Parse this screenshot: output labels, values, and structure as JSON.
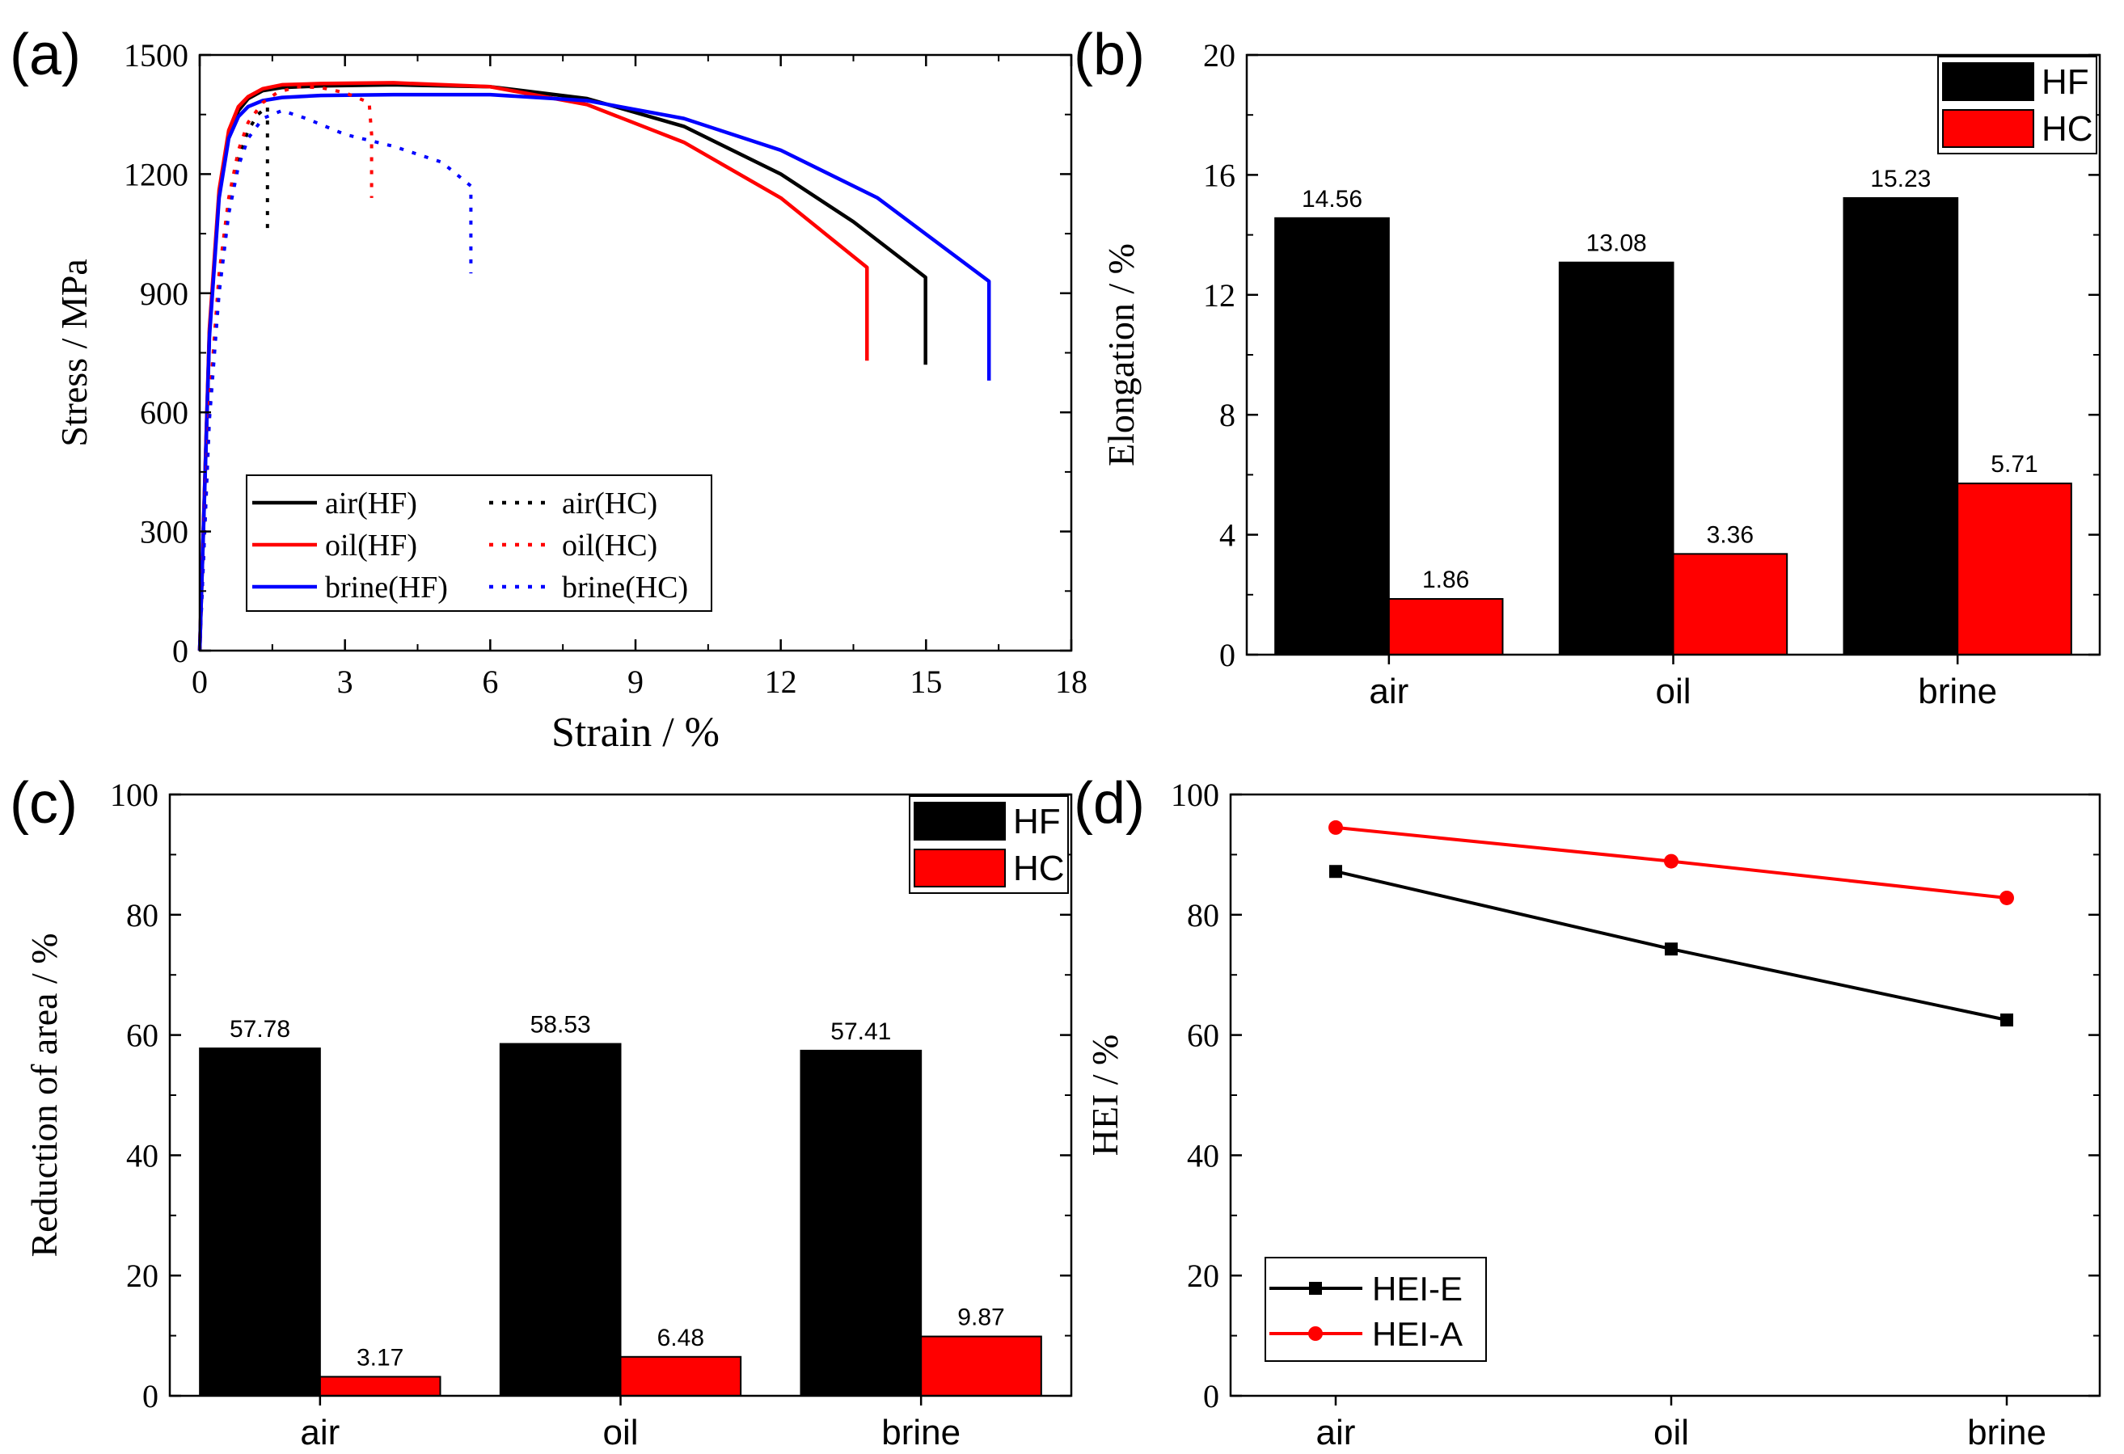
{
  "panels": {
    "a": {
      "label": "(a)"
    },
    "b": {
      "label": "(b)"
    },
    "c": {
      "label": "(c)"
    },
    "d": {
      "label": "(d)"
    }
  },
  "chart_data": [
    {
      "id": "a",
      "type": "line",
      "xlabel": "Strain / %",
      "ylabel": "Stress / MPa",
      "xlim": [
        0,
        18
      ],
      "ylim": [
        0,
        1500
      ],
      "xticks": [
        0,
        3,
        6,
        9,
        12,
        15,
        18
      ],
      "yticks": [
        0,
        300,
        600,
        900,
        1200,
        1500
      ],
      "legend_position": "lower-left",
      "series": [
        {
          "name": "air(HF)",
          "color": "#000000",
          "dashed": false,
          "x": [
            0,
            0.2,
            0.4,
            0.6,
            0.8,
            1.0,
            1.3,
            1.7,
            2.5,
            4,
            6,
            8,
            10,
            12,
            13.5,
            14.99,
            14.99
          ],
          "y": [
            0,
            800,
            1150,
            1300,
            1360,
            1390,
            1410,
            1418,
            1422,
            1425,
            1420,
            1390,
            1320,
            1200,
            1080,
            940,
            720
          ]
        },
        {
          "name": "oil(HF)",
          "color": "#ff0000",
          "dashed": false,
          "x": [
            0,
            0.2,
            0.4,
            0.6,
            0.8,
            1.0,
            1.3,
            1.7,
            2.5,
            4,
            6,
            8,
            10,
            12,
            13.78,
            13.78
          ],
          "y": [
            0,
            810,
            1160,
            1310,
            1370,
            1395,
            1415,
            1425,
            1428,
            1430,
            1420,
            1375,
            1280,
            1140,
            965,
            730
          ]
        },
        {
          "name": "brine(HF)",
          "color": "#0000ff",
          "dashed": false,
          "x": [
            0,
            0.2,
            0.4,
            0.6,
            0.8,
            1.0,
            1.3,
            1.7,
            2.5,
            4,
            6,
            8,
            10,
            12,
            14,
            16.3,
            16.3
          ],
          "y": [
            0,
            790,
            1140,
            1290,
            1345,
            1370,
            1385,
            1393,
            1398,
            1400,
            1400,
            1385,
            1340,
            1260,
            1140,
            930,
            680
          ]
        },
        {
          "name": "air(HC)",
          "color": "#000000",
          "dashed": true,
          "x": [
            0,
            0.2,
            0.4,
            0.6,
            0.8,
            1.0,
            1.2,
            1.4,
            1.4
          ],
          "y": [
            0,
            600,
            930,
            1120,
            1240,
            1310,
            1350,
            1370,
            1060
          ]
        },
        {
          "name": "oil(HC)",
          "color": "#ff0000",
          "dashed": true,
          "x": [
            0,
            0.2,
            0.4,
            0.6,
            0.8,
            1.0,
            1.3,
            1.6,
            2.0,
            2.5,
            3.0,
            3.5,
            3.55,
            3.55
          ],
          "y": [
            0,
            620,
            950,
            1140,
            1260,
            1330,
            1380,
            1405,
            1420,
            1418,
            1405,
            1380,
            1300,
            1140
          ]
        },
        {
          "name": "brine(HC)",
          "color": "#0000ff",
          "dashed": true,
          "x": [
            0,
            0.2,
            0.4,
            0.6,
            0.8,
            1.0,
            1.3,
            1.7,
            2.2,
            3.0,
            4.0,
            5.0,
            5.6,
            5.6
          ],
          "y": [
            0,
            580,
            900,
            1100,
            1220,
            1290,
            1340,
            1360,
            1340,
            1300,
            1270,
            1230,
            1170,
            950
          ]
        }
      ]
    },
    {
      "id": "b",
      "type": "bar",
      "ylabel": "Elongation / %",
      "categories": [
        "air",
        "oil",
        "brine"
      ],
      "ylim": [
        0,
        20
      ],
      "yticks": [
        0,
        4,
        8,
        12,
        16,
        20
      ],
      "legend_position": "top-right",
      "series": [
        {
          "name": "HF",
          "color": "#000000",
          "values": [
            14.56,
            13.08,
            15.23
          ],
          "labels": [
            "14.56",
            "13.08",
            "15.23"
          ]
        },
        {
          "name": "HC",
          "color": "#ff0000",
          "values": [
            1.86,
            3.36,
            5.71
          ],
          "labels": [
            "1.86",
            "3.36",
            "5.71"
          ]
        }
      ]
    },
    {
      "id": "c",
      "type": "bar",
      "ylabel": "Reduction of area / %",
      "categories": [
        "air",
        "oil",
        "brine"
      ],
      "ylim": [
        0,
        100
      ],
      "yticks": [
        0,
        20,
        40,
        60,
        80,
        100
      ],
      "legend_position": "top-right",
      "series": [
        {
          "name": "HF",
          "color": "#000000",
          "values": [
            57.78,
            58.53,
            57.41
          ],
          "labels": [
            "57.78",
            "58.53",
            "57.41"
          ]
        },
        {
          "name": "HC",
          "color": "#ff0000",
          "values": [
            3.17,
            6.48,
            9.87
          ],
          "labels": [
            "3.17",
            "6.48",
            "9.87"
          ]
        }
      ]
    },
    {
      "id": "d",
      "type": "line",
      "ylabel": "HEI / %",
      "categories": [
        "air",
        "oil",
        "brine"
      ],
      "ylim": [
        0,
        100
      ],
      "yticks": [
        0,
        20,
        40,
        60,
        80,
        100
      ],
      "legend_position": "bottom-left",
      "series": [
        {
          "name": "HEI-E",
          "color": "#000000",
          "marker": "square",
          "values": [
            87.2,
            74.3,
            62.5
          ]
        },
        {
          "name": "HEI-A",
          "color": "#ff0000",
          "marker": "circle",
          "values": [
            94.5,
            88.9,
            82.8
          ]
        }
      ]
    }
  ]
}
